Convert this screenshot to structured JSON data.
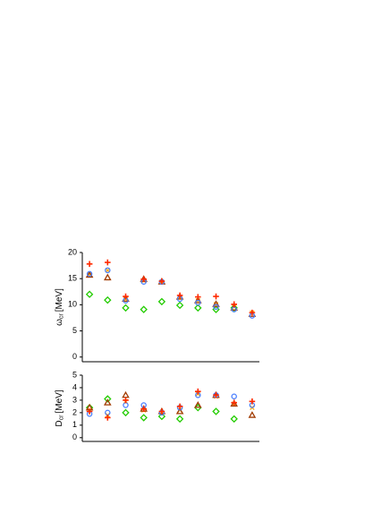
{
  "chart_data": [
    {
      "type": "scatter",
      "ylabel_symbol": "ω",
      "ylabel_subscript": "cr",
      "ylabel_unit": "[MeV]",
      "categories": [
        null,
        null,
        null,
        null,
        null,
        null,
        null,
        null,
        null,
        null
      ],
      "ylim": [
        -0.9,
        20
      ],
      "yticks": [
        0,
        5,
        10,
        15,
        20
      ],
      "series": [
        {
          "color": "#22cc00",
          "marker": "diamond",
          "values": [
            12.0,
            10.9,
            9.4,
            9.1,
            10.6,
            9.9,
            9.4,
            9.1,
            9.4,
            null
          ]
        },
        {
          "color": "#ffaa00",
          "marker": "cross",
          "values": [
            15.8,
            16.6,
            11.1,
            14.6,
            14.4,
            11.4,
            10.8,
            10.1,
            9.6,
            8.5
          ]
        },
        {
          "color": "#a03a00",
          "marker": "triangle",
          "values": [
            15.7,
            15.2,
            11.1,
            14.9,
            14.4,
            11.5,
            10.8,
            10.1,
            9.4,
            8.2
          ]
        },
        {
          "color": "#4a7fff",
          "marker": "circle",
          "values": [
            15.9,
            16.6,
            10.8,
            14.4,
            14.4,
            11.1,
            10.4,
            9.6,
            9.1,
            7.9
          ]
        },
        {
          "color": "#ff2a00",
          "marker": "plus",
          "values": [
            17.8,
            18.1,
            11.6,
            14.9,
            14.5,
            11.8,
            11.5,
            11.6,
            10.1,
            8.5
          ]
        }
      ]
    },
    {
      "type": "scatter",
      "ylabel_symbol": "D",
      "ylabel_subscript": "cr",
      "ylabel_unit": "[MeV]",
      "categories": [
        null,
        null,
        null,
        null,
        null,
        null,
        null,
        null,
        null,
        null
      ],
      "ylim": [
        -0.3,
        5
      ],
      "yticks": [
        0,
        1,
        2,
        3,
        4,
        5
      ],
      "series": [
        {
          "color": "#22cc00",
          "marker": "diamond",
          "values": [
            2.4,
            3.1,
            2.0,
            1.6,
            1.7,
            1.5,
            2.4,
            2.1,
            1.5,
            null
          ]
        },
        {
          "color": "#ffaa00",
          "marker": "cross",
          "values": [
            2.2,
            1.8,
            2.9,
            2.2,
            2.0,
            2.2,
            3.5,
            3.3,
            2.7,
            2.4
          ]
        },
        {
          "color": "#a03a00",
          "marker": "triangle",
          "values": [
            2.4,
            2.8,
            3.4,
            2.3,
            2.1,
            2.1,
            2.6,
            3.4,
            2.7,
            1.8
          ]
        },
        {
          "color": "#4a7fff",
          "marker": "circle",
          "values": [
            1.9,
            2.0,
            2.6,
            2.6,
            2.0,
            2.4,
            3.4,
            3.4,
            3.3,
            2.6
          ]
        },
        {
          "color": "#ff2a00",
          "marker": "plus",
          "values": [
            2.1,
            1.6,
            3.0,
            2.3,
            2.1,
            2.5,
            3.7,
            3.4,
            2.8,
            2.9
          ]
        }
      ]
    }
  ]
}
